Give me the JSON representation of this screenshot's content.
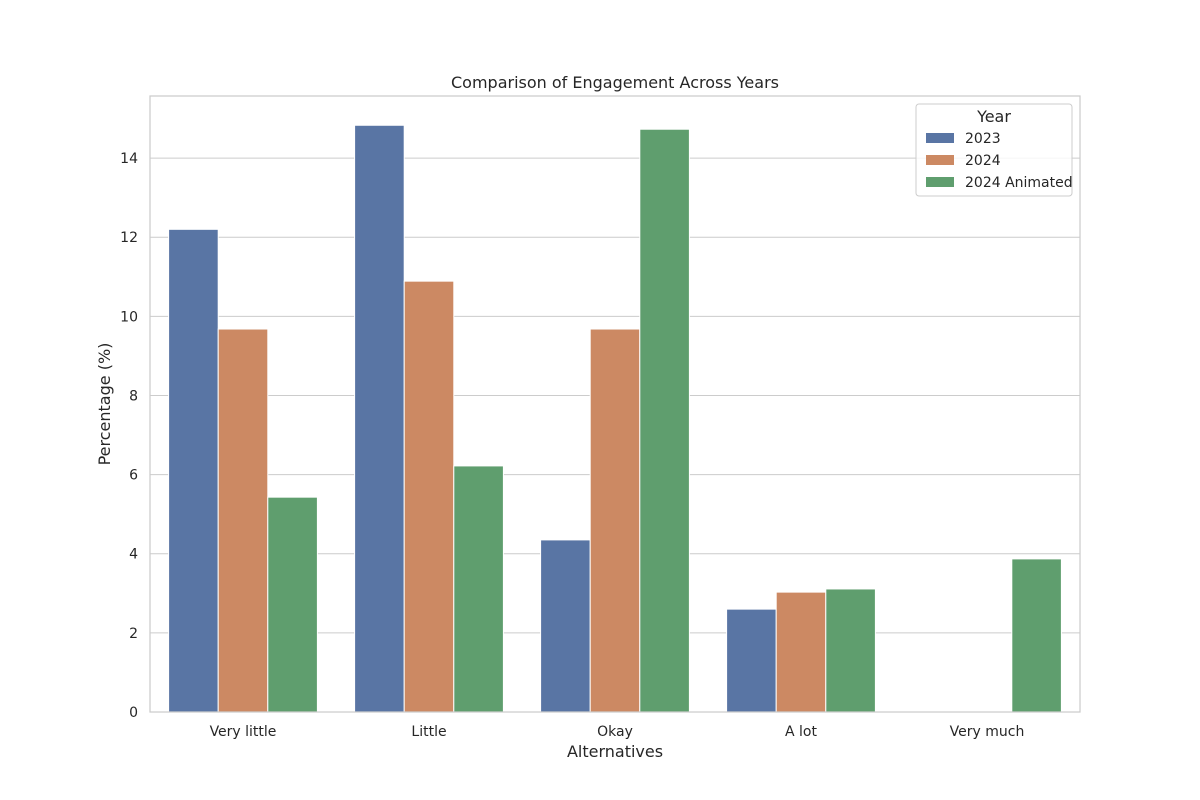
{
  "chart_data": {
    "type": "bar",
    "title": "Comparison of Engagement Across Years",
    "xlabel": "Alternatives",
    "ylabel": "Percentage (%)",
    "categories": [
      "Very little",
      "Little",
      "Okay",
      "A lot",
      "Very much"
    ],
    "series": [
      {
        "name": "2023",
        "color": "#5975a4",
        "values": [
          12.2,
          14.83,
          4.35,
          2.6,
          0
        ]
      },
      {
        "name": "2024",
        "color": "#cc8963",
        "values": [
          9.68,
          10.89,
          9.68,
          3.03,
          0
        ]
      },
      {
        "name": "2024 Animated",
        "color": "#5f9e6e",
        "values": [
          5.43,
          6.22,
          14.73,
          3.11,
          3.87
        ]
      }
    ],
    "ylim": [
      0,
      15.57
    ],
    "yticks": [
      0,
      2,
      4,
      6,
      8,
      10,
      12,
      14
    ],
    "grid": true,
    "legend": {
      "title": "Year",
      "position": "top-right"
    }
  }
}
